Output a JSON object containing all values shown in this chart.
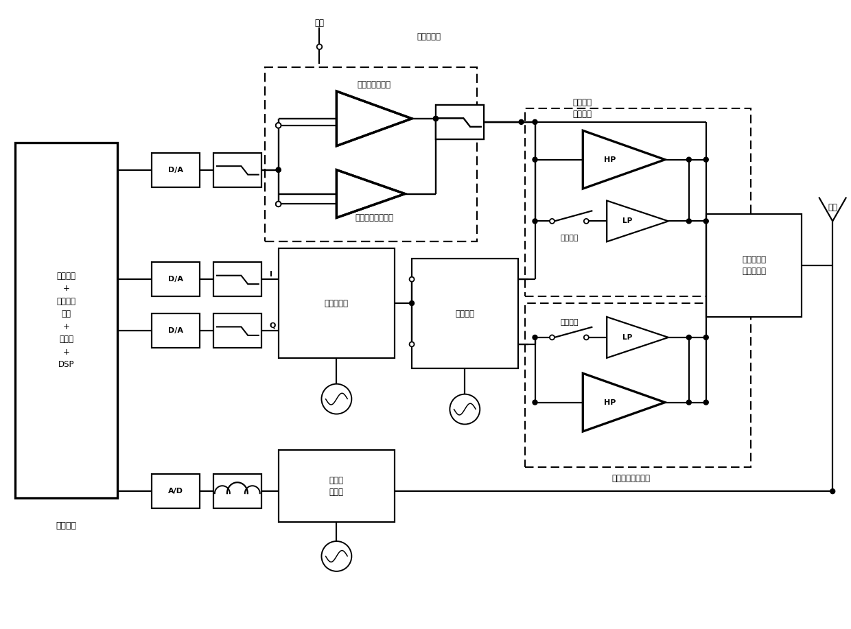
{
  "bg": "#ffffff",
  "lw": 1.6,
  "tlw": 2.4,
  "fig_w": 12.4,
  "fig_h": 9.17,
  "font_cand": [
    "SimHei",
    "Microsoft YaHei",
    "WenQuanYi Micro Hei",
    "Noto Sans CJK SC",
    "DejaVu Sans"
  ],
  "texts": {
    "dsp": "包络生成\n+\n调制信号\n生成\n+\n预失真\n+\nDSP",
    "shuzi": "数字基带",
    "dianyuan": "电源",
    "dianyuan_mod": "电源调制器",
    "linear_env": "线性包络放大器",
    "switch_env": "开关式包络放大器",
    "quad_mod": "正交调制器",
    "freq_sw": "频率开关",
    "downconv": "下变频\n调制器",
    "low_mod": "低频段放\n大器模块",
    "high_mod": "高频段放大器模块",
    "power_sw": "功率开关",
    "reconfig": "可重构式输\n出匹配电路",
    "antenna": "天线"
  }
}
